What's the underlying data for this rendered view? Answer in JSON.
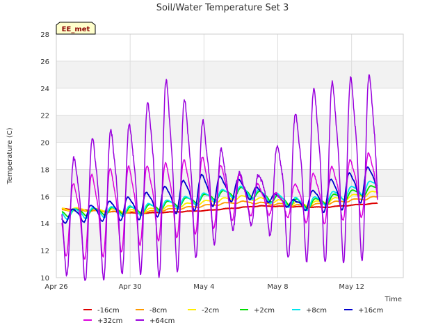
{
  "chart_data": {
    "type": "line",
    "title": "Soil/Water Temperature Set 3",
    "xlabel": "Time",
    "ylabel": "Temperature (C)",
    "badge": "EE_met",
    "xlim": [
      0,
      18.8
    ],
    "ylim": [
      10,
      28
    ],
    "x_ticks": [
      {
        "x": 0,
        "label": "Apr 26"
      },
      {
        "x": 4,
        "label": "Apr 30"
      },
      {
        "x": 8,
        "label": "May 4"
      },
      {
        "x": 12,
        "label": "May 8"
      },
      {
        "x": 16,
        "label": "May 12"
      }
    ],
    "y_ticks": [
      10,
      12,
      14,
      16,
      18,
      20,
      22,
      24,
      26,
      28
    ],
    "grid": true,
    "x_start": 0.3,
    "x_end": 17.4,
    "series": [
      {
        "name": "-16cm",
        "color": "#dd0000",
        "width": 2.0,
        "base": [
          [
            0.3,
            15.1
          ],
          [
            4.5,
            14.75
          ],
          [
            8,
            14.95
          ],
          [
            11,
            15.3
          ],
          [
            14.5,
            15.2
          ],
          [
            17.4,
            15.5
          ]
        ],
        "amp": [
          [
            0.3,
            0.02
          ],
          [
            17.4,
            0.02
          ]
        ],
        "phase": 0.0,
        "noise": 0.02
      },
      {
        "name": "-8cm",
        "color": "#ff9900",
        "width": 1.8,
        "base": [
          [
            0.3,
            15.0
          ],
          [
            4.5,
            14.8
          ],
          [
            10,
            15.6
          ],
          [
            13.5,
            15.3
          ],
          [
            17.4,
            15.95
          ]
        ],
        "amp": [
          [
            0.3,
            0.05
          ],
          [
            17.4,
            0.08
          ]
        ],
        "phase": 0.3,
        "noise": 0.02
      },
      {
        "name": "-2cm",
        "color": "#ffee00",
        "width": 1.8,
        "base": [
          [
            0.3,
            15.1
          ],
          [
            4.5,
            14.9
          ],
          [
            10,
            15.95
          ],
          [
            13.5,
            15.4
          ],
          [
            17.4,
            16.3
          ]
        ],
        "amp": [
          [
            0.3,
            0.1
          ],
          [
            17.4,
            0.15
          ]
        ],
        "phase": 0.6,
        "noise": 0.03
      },
      {
        "name": "+2cm",
        "color": "#00dd00",
        "width": 1.8,
        "base": [
          [
            0.3,
            14.8
          ],
          [
            4.5,
            15.0
          ],
          [
            10,
            16.4
          ],
          [
            13.5,
            15.4
          ],
          [
            17.4,
            16.6
          ]
        ],
        "amp": [
          [
            0.3,
            0.25
          ],
          [
            17.4,
            0.3
          ]
        ],
        "phase": 0.9,
        "noise": 0.03
      },
      {
        "name": "+8cm",
        "color": "#00e5ee",
        "width": 1.8,
        "base": [
          [
            0.3,
            14.7
          ],
          [
            4.5,
            15.0
          ],
          [
            10,
            16.4
          ],
          [
            13.5,
            15.4
          ],
          [
            17.4,
            16.9
          ]
        ],
        "amp": [
          [
            0.3,
            0.35
          ],
          [
            17.4,
            0.4
          ]
        ],
        "phase": 1.2,
        "noise": 0.04
      },
      {
        "name": "+16cm",
        "color": "#0000cc",
        "width": 1.8,
        "base": [
          [
            0.3,
            14.5
          ],
          [
            4.5,
            15.3
          ],
          [
            8,
            16.5
          ],
          [
            10,
            16.6
          ],
          [
            13,
            15.4
          ],
          [
            15,
            16.2
          ],
          [
            17.4,
            17.3
          ]
        ],
        "amp": [
          [
            0.3,
            0.4
          ],
          [
            4,
            0.8
          ],
          [
            8,
            1.2
          ],
          [
            11,
            0.4
          ],
          [
            13,
            0.3
          ],
          [
            15,
            1.2
          ],
          [
            17.4,
            1.1
          ]
        ],
        "phase": 1.9,
        "noise": 0.05
      },
      {
        "name": "+32cm",
        "color": "#dd00dd",
        "width": 1.5,
        "base": [
          [
            0.3,
            14.3
          ],
          [
            4,
            15.5
          ],
          [
            8,
            16.4
          ],
          [
            10,
            16.2
          ],
          [
            12,
            15.5
          ],
          [
            14,
            16.0
          ],
          [
            17.4,
            17.3
          ]
        ],
        "amp": [
          [
            0.3,
            2.2
          ],
          [
            1.5,
            2.8
          ],
          [
            3,
            3.0
          ],
          [
            5,
            2.6
          ],
          [
            8,
            2.6
          ],
          [
            10,
            1.4
          ],
          [
            12,
            0.7
          ],
          [
            14,
            1.8
          ],
          [
            17.4,
            2.2
          ]
        ],
        "phase": 1.6,
        "noise": 0.12
      },
      {
        "name": "+64cm",
        "color": "#9900dd",
        "width": 1.5,
        "base": [
          [
            0.3,
            14.5
          ],
          [
            2,
            15.5
          ],
          [
            4,
            16.5
          ],
          [
            6,
            18.0
          ],
          [
            8,
            17.2
          ],
          [
            10,
            15.8
          ],
          [
            12,
            16.4
          ],
          [
            14,
            18.2
          ],
          [
            17.4,
            19.0
          ]
        ],
        "amp": [
          [
            0.3,
            3.5
          ],
          [
            2,
            5.0
          ],
          [
            4,
            5.0
          ],
          [
            6,
            6.8
          ],
          [
            8,
            4.4
          ],
          [
            9.5,
            2.2
          ],
          [
            11,
            1.5
          ],
          [
            12.5,
            4.5
          ],
          [
            14,
            6.0
          ],
          [
            16,
            6.3
          ],
          [
            17.4,
            6.2
          ]
        ],
        "phase": 1.4,
        "noise": 0.3
      }
    ]
  }
}
